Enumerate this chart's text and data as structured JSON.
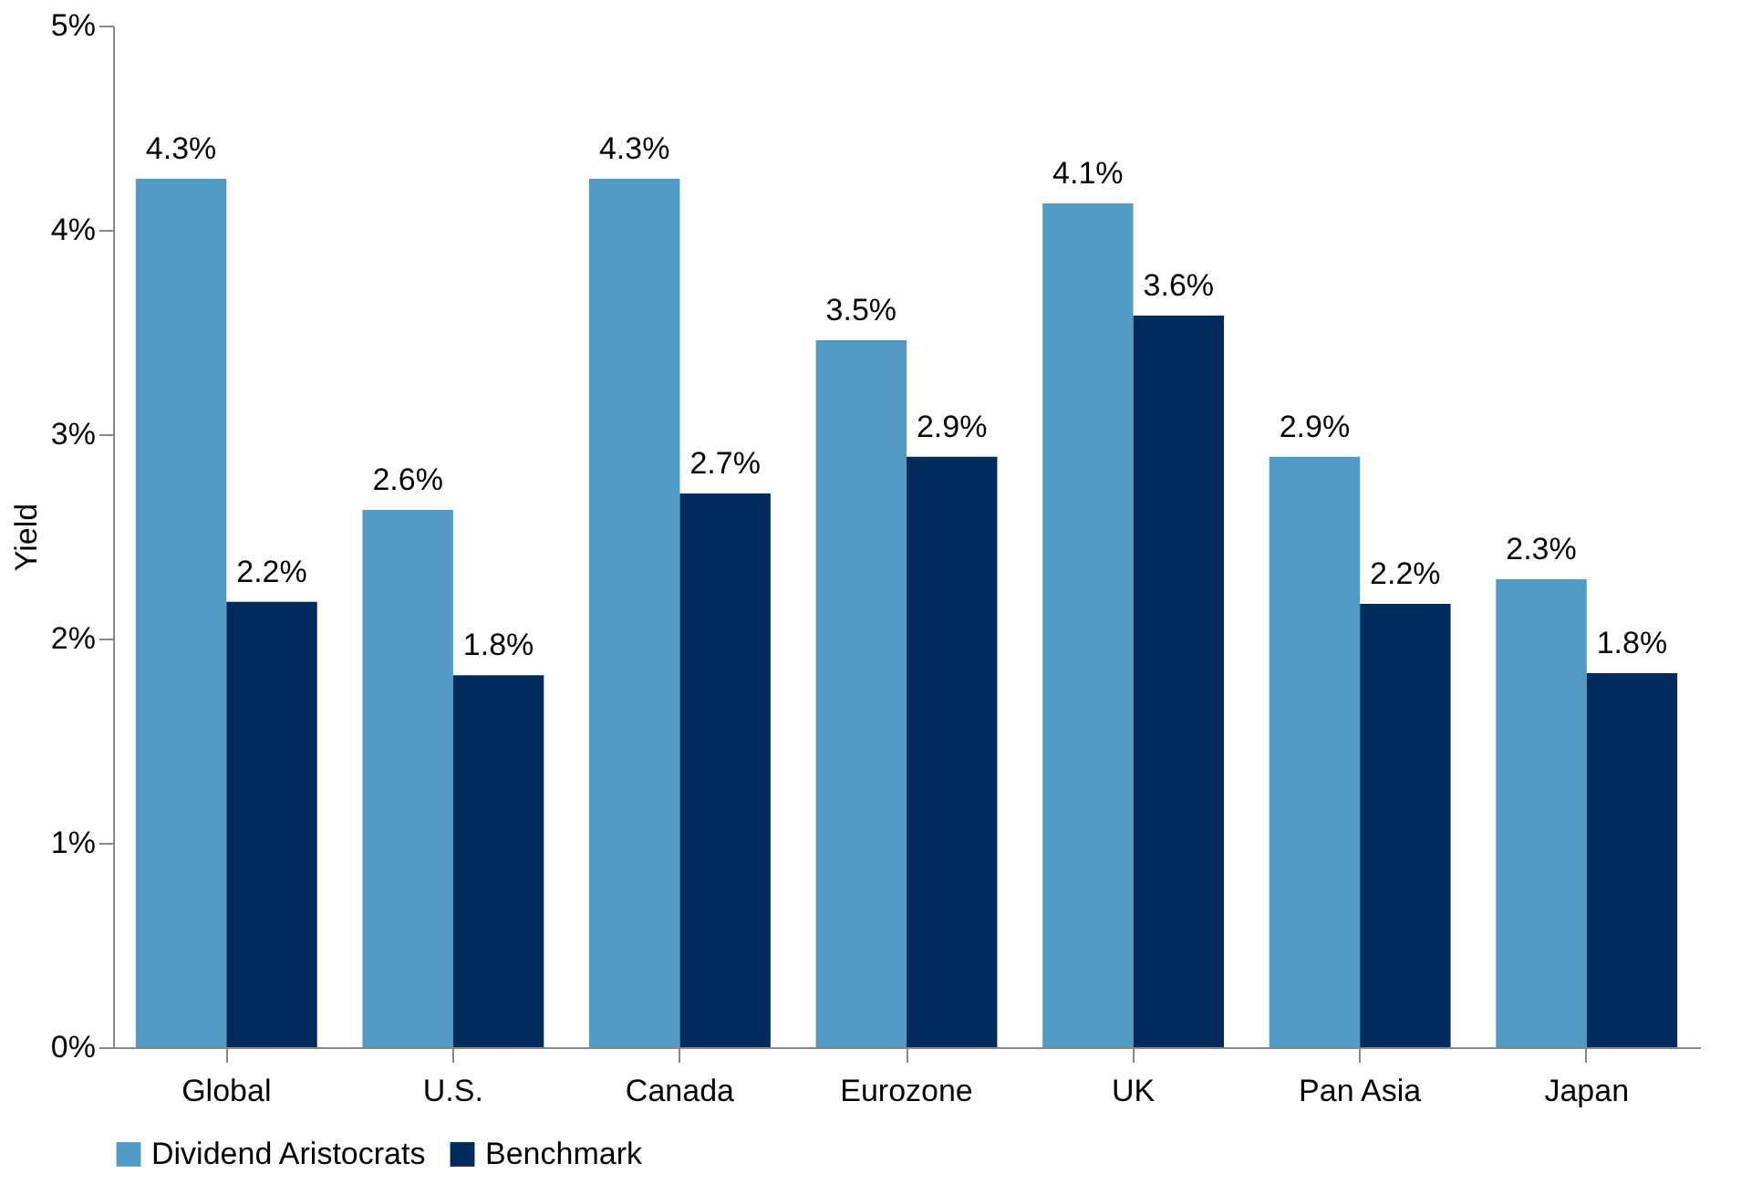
{
  "chart_data": {
    "type": "bar",
    "ylabel": "Yield",
    "categories": [
      "Global",
      "U.S.",
      "Canada",
      "Eurozone",
      "UK",
      "Pan Asia",
      "Japan"
    ],
    "series": [
      {
        "name": "Dividend Aristocrats",
        "color": "#4f9bc4",
        "values": [
          4.25,
          2.63,
          4.25,
          3.46,
          4.13,
          2.89,
          2.29
        ],
        "value_labels": [
          "4.3%",
          "2.6%",
          "4.3%",
          "3.5%",
          "4.1%",
          "2.9%",
          "2.3%"
        ]
      },
      {
        "name": "Benchmark",
        "color": "#002b5c",
        "values": [
          2.18,
          1.82,
          2.71,
          2.89,
          3.58,
          2.17,
          1.83
        ],
        "value_labels": [
          "2.2%",
          "1.8%",
          "2.7%",
          "2.9%",
          "3.6%",
          "2.2%",
          "1.8%"
        ]
      }
    ],
    "ylim": [
      0,
      5
    ],
    "yticks": [
      {
        "value": 0,
        "label": "0%"
      },
      {
        "value": 1,
        "label": "1%"
      },
      {
        "value": 2,
        "label": "2%"
      },
      {
        "value": 3,
        "label": "3%"
      },
      {
        "value": 4,
        "label": "4%"
      },
      {
        "value": 5,
        "label": "5%"
      }
    ],
    "grid": false,
    "legend": "bottom"
  }
}
